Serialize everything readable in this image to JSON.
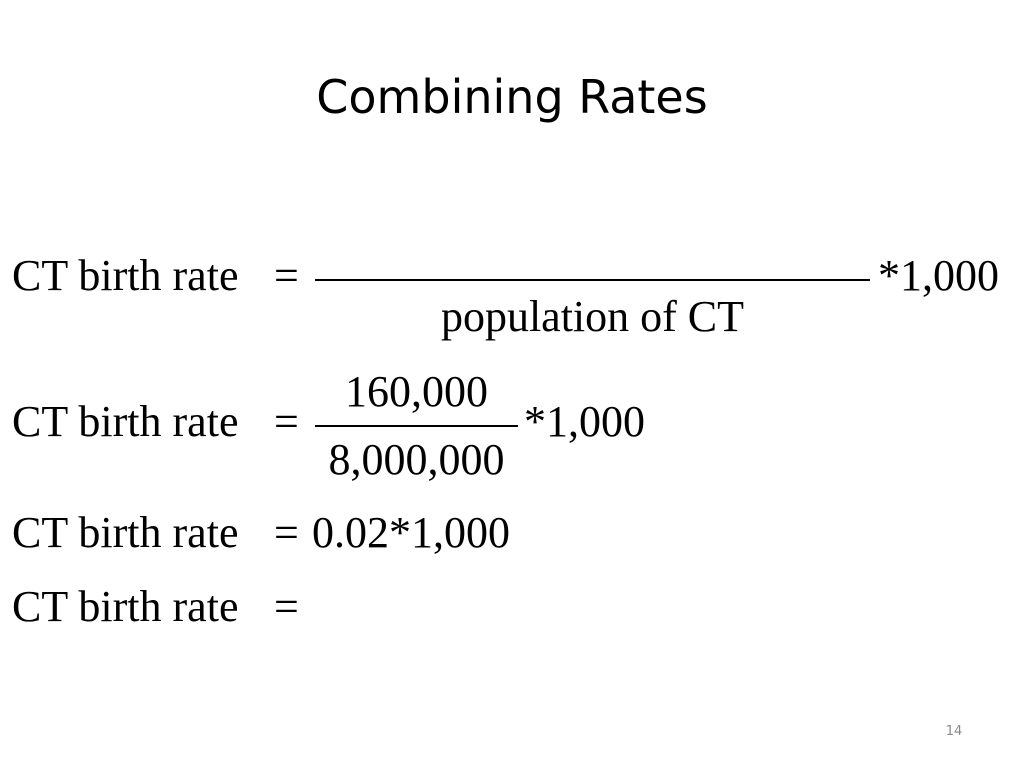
{
  "slide": {
    "title": "Combining Rates",
    "page_number": "14"
  },
  "equations": [
    {
      "lhs": "CT birth rate",
      "equals": "=",
      "numerator": "",
      "denominator": "population of CT",
      "multiplier": "*1,000"
    },
    {
      "lhs": "CT birth rate",
      "equals": "=",
      "numerator": "160,000",
      "denominator": "8,000,000",
      "multiplier": "*1,000"
    },
    {
      "lhs": "CT birth rate",
      "equals": "=",
      "expression": "0.02*1,000"
    },
    {
      "lhs": "CT birth rate",
      "equals": "="
    }
  ]
}
